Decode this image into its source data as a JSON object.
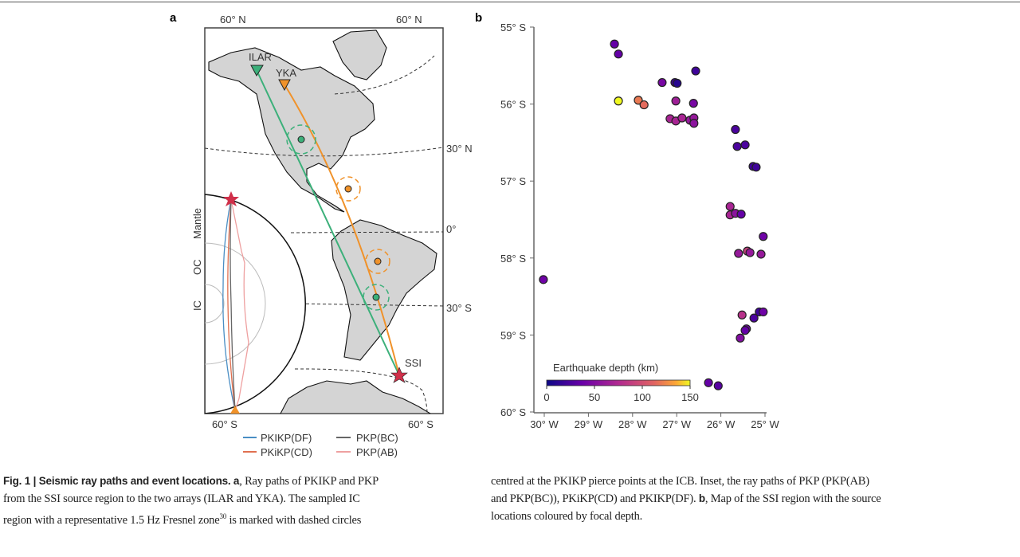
{
  "panel_a": {
    "panel_label": "a",
    "top_left_label": "60° N",
    "top_right_label": "60° N",
    "right_labels": [
      "30° N",
      "0°",
      "30° S"
    ],
    "bottom_left_label": "60° S",
    "bottom_right_label": "60° S",
    "stations": [
      "ILAR",
      "YKA"
    ],
    "source_label": "SSI",
    "inset_labels": [
      "Mantle",
      "OC",
      "IC"
    ],
    "legend": [
      {
        "label": "PKIKP(DF)",
        "color": "#4a8ec4"
      },
      {
        "label": "PKP(BC)",
        "color": "#666666"
      },
      {
        "label": "PKiKP(CD)",
        "color": "#e07050"
      },
      {
        "label": "PKP(AB)",
        "color": "#eea0a0"
      }
    ],
    "colors": {
      "ilar_path": "#3cb07a",
      "yka_path": "#f0922a",
      "source_star": "#d0304a",
      "land": "#d4d4d4"
    }
  },
  "chart_data": {
    "type": "scatter",
    "panel_label": "b",
    "title": "",
    "xlabel": "",
    "ylabel": "",
    "xlim": [
      -30,
      -25
    ],
    "ylim": [
      -60,
      -55
    ],
    "x_ticks": [
      -30,
      -29,
      -28,
      -27,
      -26,
      -25
    ],
    "x_tick_labels": [
      "30° W",
      "29° W",
      "28° W",
      "27° W",
      "26° W",
      "25° W"
    ],
    "y_ticks": [
      -55,
      -56,
      -57,
      -58,
      -59,
      -60
    ],
    "y_tick_labels": [
      "55° S",
      "56° S",
      "57° S",
      "58° S",
      "59° S",
      "60° S"
    ],
    "colorbar": {
      "label": "Earthquake depth (km)",
      "range": [
        0,
        150
      ],
      "ticks": [
        0,
        50,
        100,
        150
      ],
      "colormap": "plasma",
      "placement": "bottom-left"
    },
    "points": [
      {
        "lon": -28.41,
        "lat": -55.22,
        "depth": 35
      },
      {
        "lon": -28.32,
        "lat": -55.35,
        "depth": 35
      },
      {
        "lon": -26.57,
        "lat": -55.57,
        "depth": 20
      },
      {
        "lon": -27.33,
        "lat": -55.72,
        "depth": 45
      },
      {
        "lon": -27.04,
        "lat": -55.72,
        "depth": 20
      },
      {
        "lon": -26.99,
        "lat": -55.73,
        "depth": 10
      },
      {
        "lon": -28.32,
        "lat": -55.96,
        "depth": 150
      },
      {
        "lon": -27.87,
        "lat": -55.95,
        "depth": 120
      },
      {
        "lon": -27.74,
        "lat": -56.01,
        "depth": 115
      },
      {
        "lon": -27.02,
        "lat": -55.96,
        "depth": 65
      },
      {
        "lon": -26.62,
        "lat": -55.99,
        "depth": 45
      },
      {
        "lon": -27.15,
        "lat": -56.19,
        "depth": 70
      },
      {
        "lon": -27.02,
        "lat": -56.22,
        "depth": 70
      },
      {
        "lon": -26.88,
        "lat": -56.18,
        "depth": 70
      },
      {
        "lon": -26.7,
        "lat": -56.21,
        "depth": 60
      },
      {
        "lon": -26.61,
        "lat": -56.18,
        "depth": 60
      },
      {
        "lon": -26.61,
        "lat": -56.25,
        "depth": 55
      },
      {
        "lon": -25.67,
        "lat": -56.33,
        "depth": 25
      },
      {
        "lon": -25.63,
        "lat": -56.55,
        "depth": 25
      },
      {
        "lon": -25.45,
        "lat": -56.53,
        "depth": 25
      },
      {
        "lon": -25.27,
        "lat": -56.81,
        "depth": 20
      },
      {
        "lon": -25.2,
        "lat": -56.82,
        "depth": 20
      },
      {
        "lon": -25.79,
        "lat": -57.33,
        "depth": 70
      },
      {
        "lon": -25.79,
        "lat": -57.44,
        "depth": 70
      },
      {
        "lon": -25.67,
        "lat": -57.42,
        "depth": 55
      },
      {
        "lon": -25.54,
        "lat": -57.43,
        "depth": 35
      },
      {
        "lon": -25.04,
        "lat": -57.72,
        "depth": 40
      },
      {
        "lon": -25.6,
        "lat": -57.94,
        "depth": 60
      },
      {
        "lon": -25.4,
        "lat": -57.91,
        "depth": 90
      },
      {
        "lon": -25.34,
        "lat": -57.93,
        "depth": 60
      },
      {
        "lon": -25.09,
        "lat": -57.95,
        "depth": 60
      },
      {
        "lon": -30.02,
        "lat": -58.28,
        "depth": 40
      },
      {
        "lon": -25.52,
        "lat": -58.74,
        "depth": 80
      },
      {
        "lon": -25.25,
        "lat": -58.78,
        "depth": 25
      },
      {
        "lon": -25.13,
        "lat": -58.7,
        "depth": 20
      },
      {
        "lon": -25.04,
        "lat": -58.7,
        "depth": 40
      },
      {
        "lon": -25.42,
        "lat": -58.92,
        "depth": 40
      },
      {
        "lon": -25.45,
        "lat": -58.94,
        "depth": 35
      },
      {
        "lon": -25.56,
        "lat": -59.04,
        "depth": 50
      },
      {
        "lon": -26.28,
        "lat": -59.62,
        "depth": 35
      },
      {
        "lon": -26.06,
        "lat": -59.66,
        "depth": 30
      }
    ]
  },
  "caption": {
    "fig_label": "Fig. 1 | Seismic ray paths and event locations.",
    "a_label": "a",
    "col1_line1_rest": ", Ray paths of PKIKP and PKP",
    "col1_line2": "from the SSI source region to the two arrays (ILAR and YKA). The sampled IC",
    "col1_line3_pre": "region with a representative 1.5 Hz Fresnel zone",
    "col1_line3_sup": "30",
    "col1_line3_post": " is marked with dashed circles",
    "col2_line1": "centred at the PKIKP pierce points at the ICB. Inset, the ray paths of PKP (PKP(AB)",
    "col2_line2_pre": "and PKP(BC)), PKiKP(CD) and PKIKP(DF). ",
    "b_label": "b",
    "col2_line2_post": ", Map of the SSI region with the source",
    "col2_line3": "locations coloured by focal depth."
  }
}
